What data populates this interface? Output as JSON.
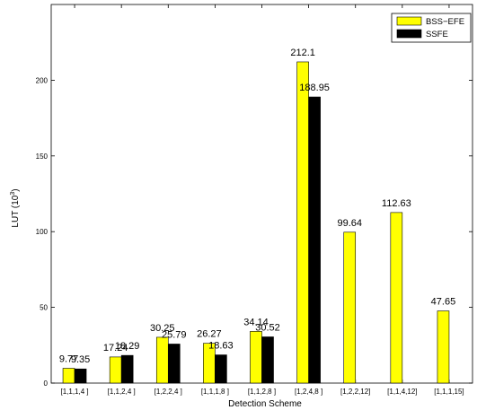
{
  "chart_data": {
    "type": "bar",
    "xlabel": "Detection Scheme",
    "ylabel_base": "LUT (10",
    "ylabel_exp": "3",
    "ylabel_close": ")",
    "ylim": [
      0,
      250
    ],
    "yticks": [
      0,
      50,
      100,
      150,
      200
    ],
    "grid": false,
    "legend_position": "top-right",
    "categories": [
      "[1,1,1,4 ]",
      "[1,1,2,4 ]",
      "[1,2,2,4 ]",
      "[1,1,1,8 ]",
      "[1,1,2,8 ]",
      "[1,2,4,8 ]",
      "[1,2,2,12]",
      "[1,1,4,12]",
      "[1,1,1,15]"
    ],
    "series": [
      {
        "name": "BSS−EFE",
        "color": "#ffff00",
        "values": [
          9.77,
          17.24,
          30.25,
          26.27,
          34.14,
          212.1,
          99.64,
          112.63,
          47.65
        ],
        "labels": [
          "9.77",
          "17.24",
          "30.25",
          "26.27",
          "34.14",
          "212.1",
          "99.64",
          "112.63",
          "47.65"
        ]
      },
      {
        "name": "SSFE",
        "color": "#000000",
        "values": [
          9.35,
          18.29,
          25.79,
          18.63,
          30.52,
          188.95,
          null,
          null,
          null
        ],
        "labels": [
          "9.35",
          "18.29",
          "25.79",
          "18.63",
          "30.52",
          "188.95",
          "",
          "",
          ""
        ]
      }
    ]
  }
}
